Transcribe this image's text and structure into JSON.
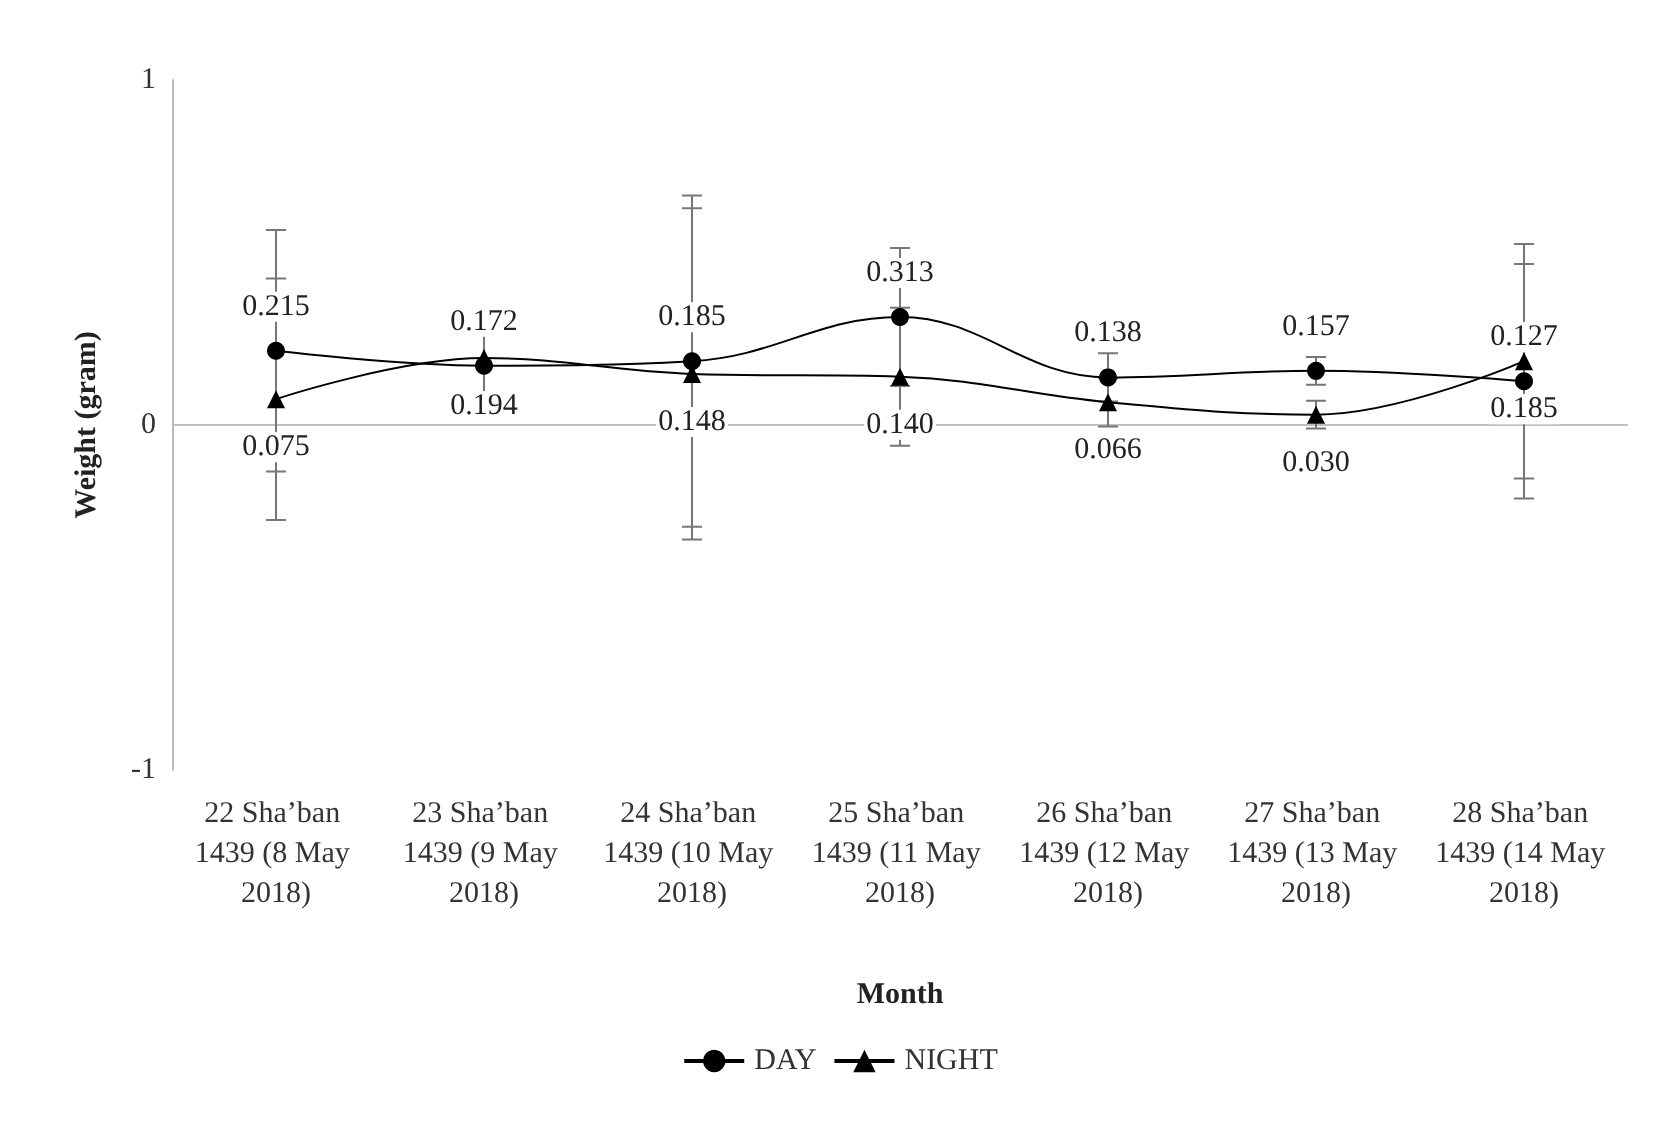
{
  "chart_data": {
    "type": "line",
    "xlabel": "Month",
    "ylabel": "Weight (gram)",
    "categories": [
      "22 Sha’ban 1439 (8 May 2018)",
      "23 Sha’ban 1439 (9 May 2018)",
      "24 Sha’ban 1439 (10 May 2018)",
      "25 Sha’ban 1439 (11 May 2018)",
      "26 Sha’ban 1439 (12 May 2018)",
      "27 Sha’ban 1439 (13 May 2018)",
      "28 Sha’ban 1439 (14 May 2018)"
    ],
    "series": [
      {
        "name": "DAY",
        "color": "#000000",
        "marker": "circle",
        "values": [
          0.215,
          0.172,
          0.185,
          0.313,
          0.138,
          0.157,
          0.127
        ],
        "value_labels": [
          "0.215",
          "0.172",
          "0.185",
          "0.313",
          "0.138",
          "0.157",
          "0.127"
        ],
        "errors": [
          0.35,
          0.12,
          0.48,
          0.2,
          0.07,
          0.04,
          0.34
        ]
      },
      {
        "name": "NIGHT",
        "color": "#000000",
        "marker": "triangle",
        "values": [
          0.075,
          0.194,
          0.148,
          0.14,
          0.066,
          0.03,
          0.185
        ],
        "value_labels": [
          "0.075",
          "0.194",
          "0.148",
          "0.140",
          "0.066",
          "0.030",
          "0.185"
        ],
        "errors": [
          0.35,
          0.12,
          0.48,
          0.2,
          0.07,
          0.04,
          0.34
        ]
      }
    ],
    "ylim": [
      -1,
      1
    ],
    "yticks": [
      -1,
      0,
      1
    ],
    "ref_lines": [
      {
        "axis": "y",
        "value": 0,
        "color": "#bfbfbf"
      }
    ],
    "legend": "bottom",
    "line_style": "solid"
  }
}
